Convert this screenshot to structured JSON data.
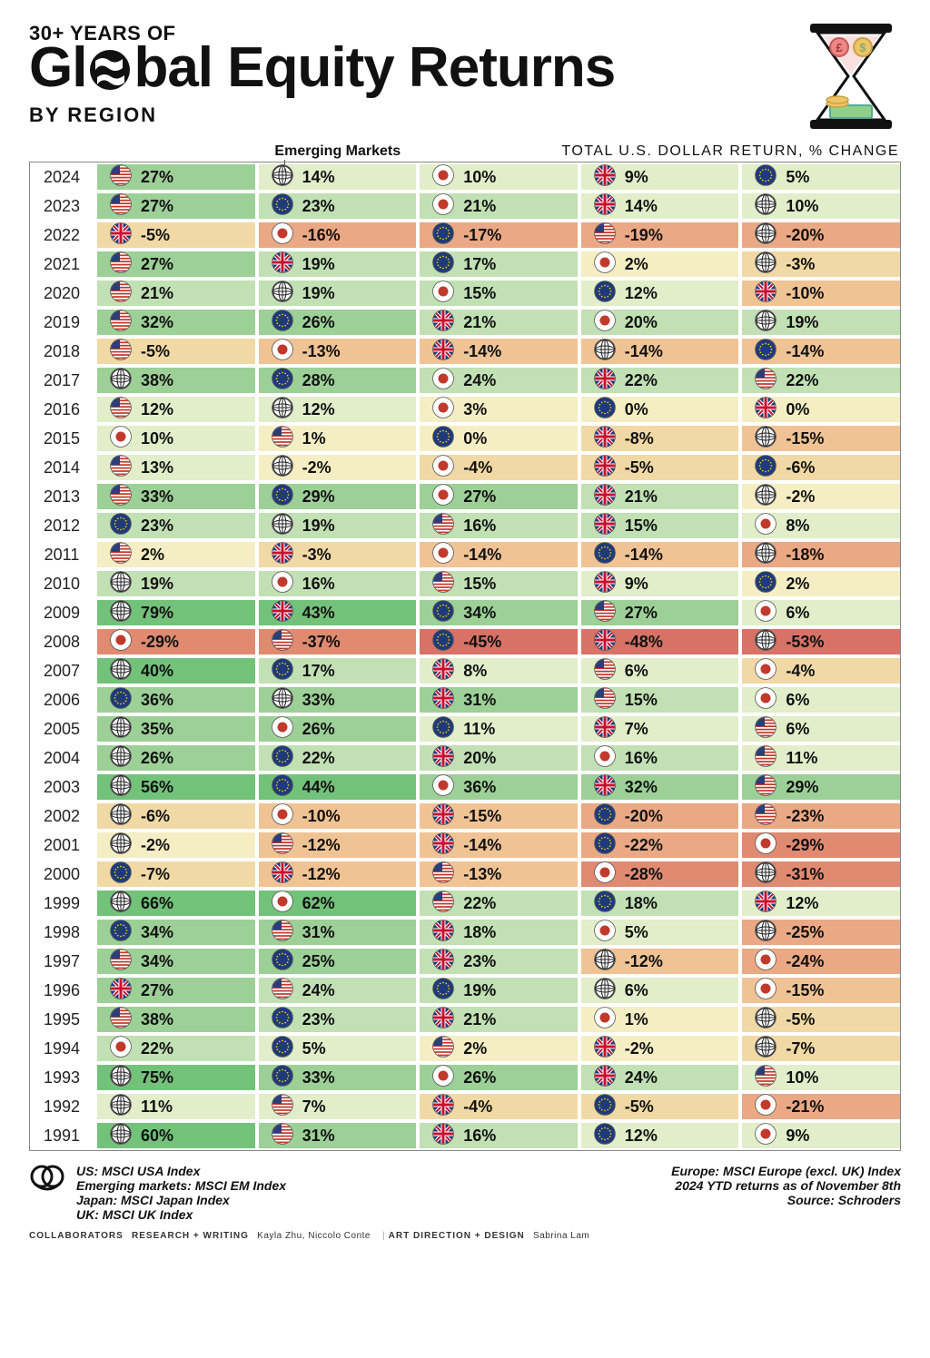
{
  "header": {
    "line1": "30+ YEARS OF",
    "line2_a": "Gl",
    "line2_b": "bal Equity Returns",
    "line3": "BY REGION"
  },
  "sub": {
    "em": "Emerging Markets",
    "usd": "TOTAL U.S. DOLLAR RETURN, % CHANGE"
  },
  "tiers": {
    "breaks": [
      -40,
      -25,
      -15,
      -8,
      -2,
      5,
      15,
      25,
      40
    ],
    "classes": [
      "r3",
      "r2",
      "r1",
      "o2",
      "o1",
      "y0",
      "g1",
      "g2",
      "g3",
      "g4"
    ]
  },
  "flags": {
    "us": {
      "name": "US"
    },
    "uk": {
      "name": "UK"
    },
    "jp": {
      "name": "Japan"
    },
    "eu": {
      "name": "Europe"
    },
    "em": {
      "name": "Emerging Markets"
    }
  },
  "rows": [
    {
      "year": "2024",
      "cells": [
        [
          "us",
          27
        ],
        [
          "em",
          14
        ],
        [
          "jp",
          10
        ],
        [
          "uk",
          9
        ],
        [
          "eu",
          5
        ]
      ]
    },
    {
      "year": "2023",
      "cells": [
        [
          "us",
          27
        ],
        [
          "eu",
          23
        ],
        [
          "jp",
          21
        ],
        [
          "uk",
          14
        ],
        [
          "em",
          10
        ]
      ]
    },
    {
      "year": "2022",
      "cells": [
        [
          "uk",
          -5
        ],
        [
          "jp",
          -16
        ],
        [
          "eu",
          -17
        ],
        [
          "us",
          -19
        ],
        [
          "em",
          -20
        ]
      ]
    },
    {
      "year": "2021",
      "cells": [
        [
          "us",
          27
        ],
        [
          "uk",
          19
        ],
        [
          "eu",
          17
        ],
        [
          "jp",
          2
        ],
        [
          "em",
          -3
        ]
      ]
    },
    {
      "year": "2020",
      "cells": [
        [
          "us",
          21
        ],
        [
          "em",
          19
        ],
        [
          "jp",
          15
        ],
        [
          "eu",
          12
        ],
        [
          "uk",
          -10
        ]
      ]
    },
    {
      "year": "2019",
      "cells": [
        [
          "us",
          32
        ],
        [
          "eu",
          26
        ],
        [
          "uk",
          21
        ],
        [
          "jp",
          20
        ],
        [
          "em",
          19
        ]
      ]
    },
    {
      "year": "2018",
      "cells": [
        [
          "us",
          -5
        ],
        [
          "jp",
          -13
        ],
        [
          "uk",
          -14
        ],
        [
          "em",
          -14
        ],
        [
          "eu",
          -14
        ]
      ]
    },
    {
      "year": "2017",
      "cells": [
        [
          "em",
          38
        ],
        [
          "eu",
          28
        ],
        [
          "jp",
          24
        ],
        [
          "uk",
          22
        ],
        [
          "us",
          22
        ]
      ]
    },
    {
      "year": "2016",
      "cells": [
        [
          "us",
          12
        ],
        [
          "em",
          12
        ],
        [
          "jp",
          3
        ],
        [
          "eu",
          0
        ],
        [
          "uk",
          0
        ]
      ]
    },
    {
      "year": "2015",
      "cells": [
        [
          "jp",
          10
        ],
        [
          "us",
          1
        ],
        [
          "eu",
          0
        ],
        [
          "uk",
          -8
        ],
        [
          "em",
          -15
        ]
      ]
    },
    {
      "year": "2014",
      "cells": [
        [
          "us",
          13
        ],
        [
          "em",
          -2
        ],
        [
          "jp",
          -4
        ],
        [
          "uk",
          -5
        ],
        [
          "eu",
          -6
        ]
      ]
    },
    {
      "year": "2013",
      "cells": [
        [
          "us",
          33
        ],
        [
          "eu",
          29
        ],
        [
          "jp",
          27
        ],
        [
          "uk",
          21
        ],
        [
          "em",
          -2
        ]
      ]
    },
    {
      "year": "2012",
      "cells": [
        [
          "eu",
          23
        ],
        [
          "em",
          19
        ],
        [
          "us",
          16
        ],
        [
          "uk",
          15
        ],
        [
          "jp",
          8
        ]
      ]
    },
    {
      "year": "2011",
      "cells": [
        [
          "us",
          2
        ],
        [
          "uk",
          -3
        ],
        [
          "jp",
          -14
        ],
        [
          "eu",
          -14
        ],
        [
          "em",
          -18
        ]
      ]
    },
    {
      "year": "2010",
      "cells": [
        [
          "em",
          19
        ],
        [
          "jp",
          16
        ],
        [
          "us",
          15
        ],
        [
          "uk",
          9
        ],
        [
          "eu",
          2
        ]
      ]
    },
    {
      "year": "2009",
      "cells": [
        [
          "em",
          79
        ],
        [
          "uk",
          43
        ],
        [
          "eu",
          34
        ],
        [
          "us",
          27
        ],
        [
          "jp",
          6
        ]
      ]
    },
    {
      "year": "2008",
      "cells": [
        [
          "jp",
          -29
        ],
        [
          "us",
          -37
        ],
        [
          "eu",
          -45
        ],
        [
          "uk",
          -48
        ],
        [
          "em",
          -53
        ]
      ]
    },
    {
      "year": "2007",
      "cells": [
        [
          "em",
          40
        ],
        [
          "eu",
          17
        ],
        [
          "uk",
          8
        ],
        [
          "us",
          6
        ],
        [
          "jp",
          -4
        ]
      ]
    },
    {
      "year": "2006",
      "cells": [
        [
          "eu",
          36
        ],
        [
          "em",
          33
        ],
        [
          "uk",
          31
        ],
        [
          "us",
          15
        ],
        [
          "jp",
          6
        ]
      ]
    },
    {
      "year": "2005",
      "cells": [
        [
          "em",
          35
        ],
        [
          "jp",
          26
        ],
        [
          "eu",
          11
        ],
        [
          "uk",
          7
        ],
        [
          "us",
          6
        ]
      ]
    },
    {
      "year": "2004",
      "cells": [
        [
          "em",
          26
        ],
        [
          "eu",
          22
        ],
        [
          "uk",
          20
        ],
        [
          "jp",
          16
        ],
        [
          "us",
          11
        ]
      ]
    },
    {
      "year": "2003",
      "cells": [
        [
          "em",
          56
        ],
        [
          "eu",
          44
        ],
        [
          "jp",
          36
        ],
        [
          "uk",
          32
        ],
        [
          "us",
          29
        ]
      ]
    },
    {
      "year": "2002",
      "cells": [
        [
          "em",
          -6
        ],
        [
          "jp",
          -10
        ],
        [
          "uk",
          -15
        ],
        [
          "eu",
          -20
        ],
        [
          "us",
          -23
        ]
      ]
    },
    {
      "year": "2001",
      "cells": [
        [
          "em",
          -2
        ],
        [
          "us",
          -12
        ],
        [
          "uk",
          -14
        ],
        [
          "eu",
          -22
        ],
        [
          "jp",
          -29
        ]
      ]
    },
    {
      "year": "2000",
      "cells": [
        [
          "eu",
          -7
        ],
        [
          "uk",
          -12
        ],
        [
          "us",
          -13
        ],
        [
          "jp",
          -28
        ],
        [
          "em",
          -31
        ]
      ]
    },
    {
      "year": "1999",
      "cells": [
        [
          "em",
          66
        ],
        [
          "jp",
          62
        ],
        [
          "us",
          22
        ],
        [
          "eu",
          18
        ],
        [
          "uk",
          12
        ]
      ]
    },
    {
      "year": "1998",
      "cells": [
        [
          "eu",
          34
        ],
        [
          "us",
          31
        ],
        [
          "uk",
          18
        ],
        [
          "jp",
          5
        ],
        [
          "em",
          -25
        ]
      ]
    },
    {
      "year": "1997",
      "cells": [
        [
          "us",
          34
        ],
        [
          "eu",
          25
        ],
        [
          "uk",
          23
        ],
        [
          "em",
          -12
        ],
        [
          "jp",
          -24
        ]
      ]
    },
    {
      "year": "1996",
      "cells": [
        [
          "uk",
          27
        ],
        [
          "us",
          24
        ],
        [
          "eu",
          19
        ],
        [
          "em",
          6
        ],
        [
          "jp",
          -15
        ]
      ]
    },
    {
      "year": "1995",
      "cells": [
        [
          "us",
          38
        ],
        [
          "eu",
          23
        ],
        [
          "uk",
          21
        ],
        [
          "jp",
          1
        ],
        [
          "em",
          -5
        ]
      ]
    },
    {
      "year": "1994",
      "cells": [
        [
          "jp",
          22
        ],
        [
          "eu",
          5
        ],
        [
          "us",
          2
        ],
        [
          "uk",
          -2
        ],
        [
          "em",
          -7
        ]
      ]
    },
    {
      "year": "1993",
      "cells": [
        [
          "em",
          75
        ],
        [
          "eu",
          33
        ],
        [
          "jp",
          26
        ],
        [
          "uk",
          24
        ],
        [
          "us",
          10
        ]
      ]
    },
    {
      "year": "1992",
      "cells": [
        [
          "em",
          11
        ],
        [
          "us",
          7
        ],
        [
          "uk",
          -4
        ],
        [
          "eu",
          -5
        ],
        [
          "jp",
          -21
        ]
      ]
    },
    {
      "year": "1991",
      "cells": [
        [
          "em",
          60
        ],
        [
          "us",
          31
        ],
        [
          "uk",
          16
        ],
        [
          "eu",
          12
        ],
        [
          "jp",
          9
        ]
      ]
    }
  ],
  "footer": {
    "left": [
      "US: MSCI USA Index",
      "Emerging markets: MSCI EM Index",
      "Japan: MSCI Japan Index",
      "UK: MSCI UK Index"
    ],
    "right": [
      "Europe: MSCI Europe (excl. UK) Index",
      "2024 YTD returns as of November 8th",
      "Source: Schroders"
    ],
    "credits": {
      "collab": "COLLABORATORS",
      "research_label": "RESEARCH + WRITING",
      "research": "Kayla Zhu, Niccolo Conte",
      "art_label": "ART DIRECTION + DESIGN",
      "art": "Sabrina Lam"
    }
  }
}
